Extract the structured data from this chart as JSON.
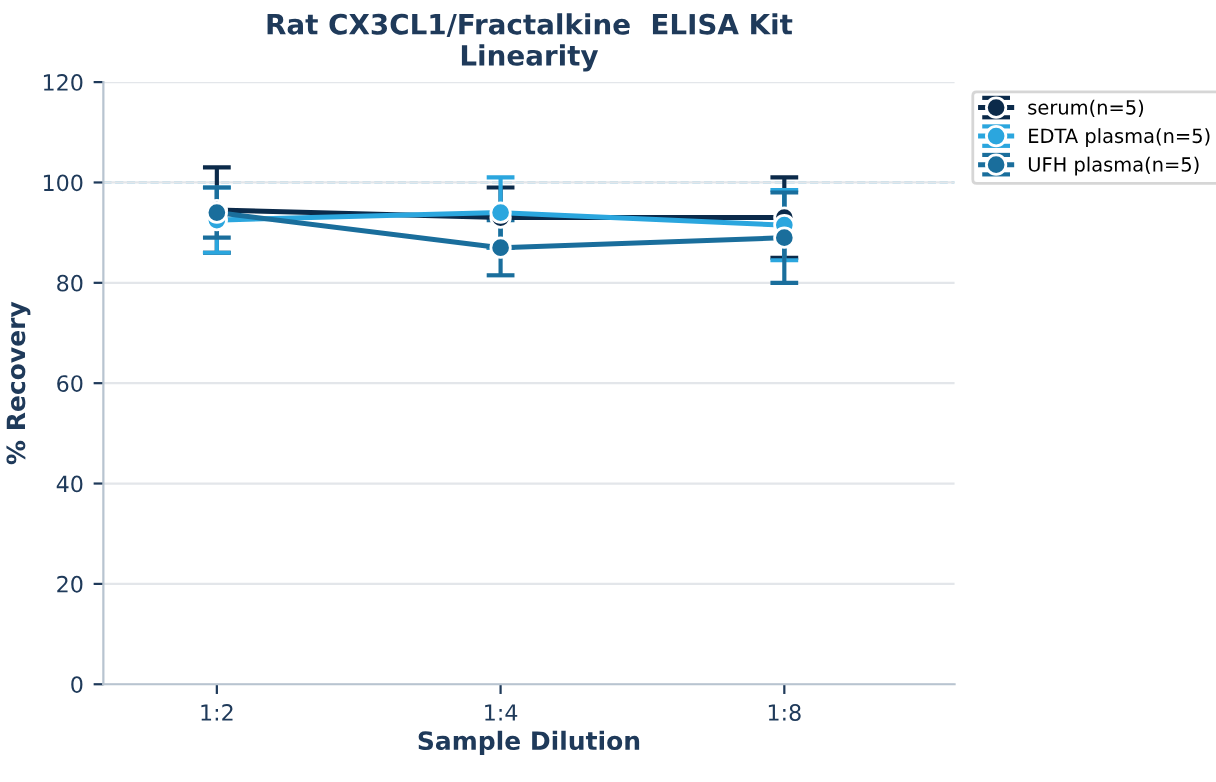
{
  "chart_data": {
    "type": "line",
    "title": "Rat CX3CL1/Fractalkine  ELISA Kit\nLinearity",
    "xlabel": "Sample Dilution",
    "ylabel": "% Recovery",
    "categories": [
      "1:2",
      "1:4",
      "1:8"
    ],
    "series": [
      {
        "name": "serum(n=5)",
        "color": "#0b2a4a",
        "values": [
          94.5,
          93,
          93
        ],
        "errors": [
          8.5,
          6,
          8
        ]
      },
      {
        "name": "EDTA plasma(n=5)",
        "color": "#2ba6de",
        "values": [
          92.5,
          94,
          91.5
        ],
        "errors": [
          6.5,
          7,
          7
        ]
      },
      {
        "name": "UFH plasma(n=5)",
        "color": "#1a6e9c",
        "values": [
          94,
          87,
          89
        ],
        "errors": [
          5,
          5.5,
          9
        ]
      }
    ],
    "ylim": [
      0,
      120
    ],
    "yticks": [
      0,
      20,
      40,
      60,
      80,
      100,
      120
    ],
    "grid": "y",
    "legend": "top right",
    "marker": "circle",
    "line_style": "solid",
    "ref_lines": [
      {
        "axis": "y",
        "value": 100,
        "color": "#7fc8e6",
        "line_style": "dashed"
      }
    ]
  }
}
